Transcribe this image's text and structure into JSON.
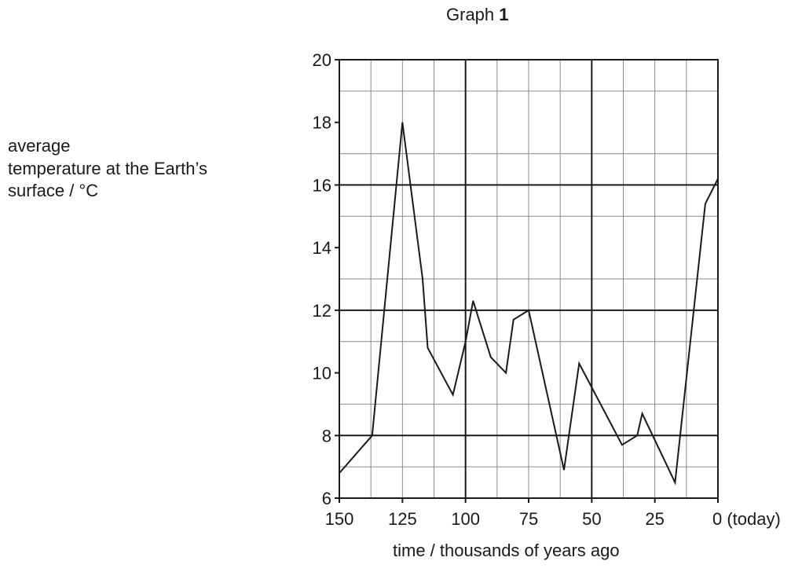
{
  "title": {
    "prefix": "Graph ",
    "number": "1"
  },
  "chart_data": {
    "type": "line",
    "title": "Graph 1",
    "ylabel_lines": [
      "average",
      "temperature at the Earth’s",
      "surface / °C"
    ],
    "xlabel": "time / thousands of years ago",
    "x_ticks": [
      "150",
      "125",
      "100",
      "75",
      "50",
      "25",
      "0 (today)"
    ],
    "y_ticks": [
      "6",
      "8",
      "10",
      "12",
      "14",
      "16",
      "18",
      "20"
    ],
    "xlim": [
      150,
      0
    ],
    "ylim": [
      6,
      20
    ],
    "grid": true,
    "series": [
      {
        "x": [
          150,
          137,
          125,
          117,
          115,
          105,
          100,
          97,
          90,
          84,
          81,
          75,
          61,
          55,
          38,
          32,
          30,
          17,
          5,
          0
        ],
        "y": [
          6.8,
          8.0,
          18.0,
          13.0,
          10.8,
          9.3,
          11.0,
          12.3,
          10.5,
          10.0,
          11.7,
          12.0,
          6.9,
          10.3,
          7.7,
          8.0,
          8.7,
          6.5,
          15.4,
          16.2
        ]
      }
    ]
  }
}
